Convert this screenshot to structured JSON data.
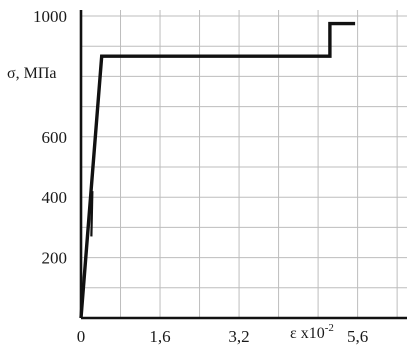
{
  "chart_data": {
    "type": "line",
    "title": "",
    "ylabel": "σ, МПа",
    "xlabel": {
      "base": "ε x10",
      "exponent": "-2"
    },
    "xlim": [
      0,
      6.6
    ],
    "ylim": [
      0,
      1000
    ],
    "x_ticks": [
      {
        "value": 0,
        "label": "0"
      },
      {
        "value": 1.6,
        "label": "1,6"
      },
      {
        "value": 3.2,
        "label": "3,2"
      },
      {
        "value": 5.6,
        "label": "5,6"
      }
    ],
    "y_ticks": [
      {
        "value": 200,
        "label": "200"
      },
      {
        "value": 400,
        "label": "400"
      },
      {
        "value": 600,
        "label": "600"
      },
      {
        "value": 800,
        "label": ""
      },
      {
        "value": 1000,
        "label": "1000"
      }
    ],
    "grid": true,
    "grid_x": [
      0.8,
      1.6,
      2.4,
      3.2,
      4.0,
      4.8,
      5.6,
      6.4
    ],
    "grid_y": [
      100,
      200,
      300,
      400,
      500,
      600,
      700,
      800,
      900,
      1000
    ],
    "series": [
      {
        "x": [
          0.0,
          0.42,
          4.98,
          5.04,
          5.04,
          5.55
        ],
        "y": [
          0,
          867,
          867,
          867,
          975,
          975
        ]
      }
    ],
    "annotation_segment": {
      "x": [
        0.21,
        0.23
      ],
      "y": [
        270,
        420
      ]
    },
    "colors": {
      "line": "#111111",
      "grid": "#bdbdbd",
      "background": "#ffffff"
    }
  }
}
